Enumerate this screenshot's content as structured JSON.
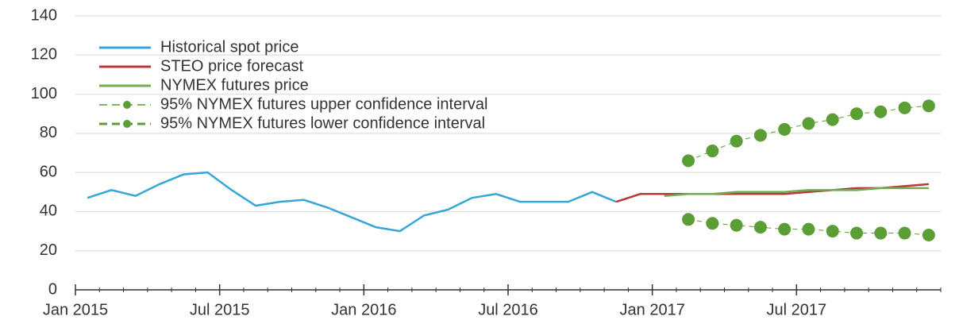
{
  "chart_data": {
    "type": "line",
    "x": [
      "2015-01",
      "2015-02",
      "2015-03",
      "2015-04",
      "2015-05",
      "2015-06",
      "2015-07",
      "2015-08",
      "2015-09",
      "2015-10",
      "2015-11",
      "2015-12",
      "2016-01",
      "2016-02",
      "2016-03",
      "2016-04",
      "2016-05",
      "2016-06",
      "2016-07",
      "2016-08",
      "2016-09",
      "2016-10",
      "2016-11",
      "2016-12",
      "2017-01",
      "2017-02",
      "2017-03",
      "2017-04",
      "2017-05",
      "2017-06",
      "2017-07",
      "2017-08",
      "2017-09",
      "2017-10",
      "2017-11",
      "2017-12"
    ],
    "series": [
      {
        "name": "Historical spot price",
        "color": "#35a6d8",
        "style": "solid",
        "values": [
          47,
          51,
          48,
          54,
          59,
          60,
          51,
          43,
          45,
          46,
          42,
          37,
          32,
          30,
          38,
          41,
          47,
          49,
          45,
          45,
          45,
          50,
          45,
          null,
          null,
          null,
          null,
          null,
          null,
          null,
          null,
          null,
          null,
          null,
          null,
          null
        ]
      },
      {
        "name": "STEO price forecast",
        "color": "#b8383c",
        "style": "solid",
        "values": [
          null,
          null,
          null,
          null,
          null,
          null,
          null,
          null,
          null,
          null,
          null,
          null,
          null,
          null,
          null,
          null,
          null,
          null,
          null,
          null,
          null,
          null,
          45,
          49,
          49,
          49,
          49,
          49,
          49,
          49,
          50,
          51,
          52,
          52,
          53,
          54
        ]
      },
      {
        "name": "NYMEX futures price",
        "color": "#72ab52",
        "style": "solid",
        "values": [
          null,
          null,
          null,
          null,
          null,
          null,
          null,
          null,
          null,
          null,
          null,
          null,
          null,
          null,
          null,
          null,
          null,
          null,
          null,
          null,
          null,
          null,
          null,
          null,
          48,
          49,
          49,
          50,
          50,
          50,
          51,
          51,
          51,
          52,
          52,
          52
        ]
      },
      {
        "name": "95% NYMEX futures upper confidence interval",
        "color": "#5a9e35",
        "style": "dotted",
        "values": [
          null,
          null,
          null,
          null,
          null,
          null,
          null,
          null,
          null,
          null,
          null,
          null,
          null,
          null,
          null,
          null,
          null,
          null,
          null,
          null,
          null,
          null,
          null,
          null,
          null,
          66,
          71,
          76,
          79,
          82,
          85,
          87,
          90,
          91,
          93,
          94
        ]
      },
      {
        "name": "95% NYMEX futures lower confidence interval",
        "color": "#5a9e35",
        "style": "dotted",
        "values": [
          null,
          null,
          null,
          null,
          null,
          null,
          null,
          null,
          null,
          null,
          null,
          null,
          null,
          null,
          null,
          null,
          null,
          null,
          null,
          null,
          null,
          null,
          null,
          null,
          null,
          36,
          34,
          33,
          32,
          31,
          31,
          30,
          29,
          29,
          29,
          28
        ]
      }
    ],
    "xlim": [
      "2015-01",
      "2018-01"
    ],
    "xticks": [
      {
        "value": "2015-01",
        "label": "Jan 2015"
      },
      {
        "value": "2015-07",
        "label": "Jul 2015"
      },
      {
        "value": "2016-01",
        "label": "Jan 2016"
      },
      {
        "value": "2016-07",
        "label": "Jul 2016"
      },
      {
        "value": "2017-01",
        "label": "Jan 2017"
      },
      {
        "value": "2017-07",
        "label": "Jul 2017"
      }
    ],
    "ylim": [
      0,
      140
    ],
    "yticks": [
      0,
      20,
      40,
      60,
      80,
      100,
      120,
      140
    ],
    "grid": true,
    "legend": "upper left"
  }
}
